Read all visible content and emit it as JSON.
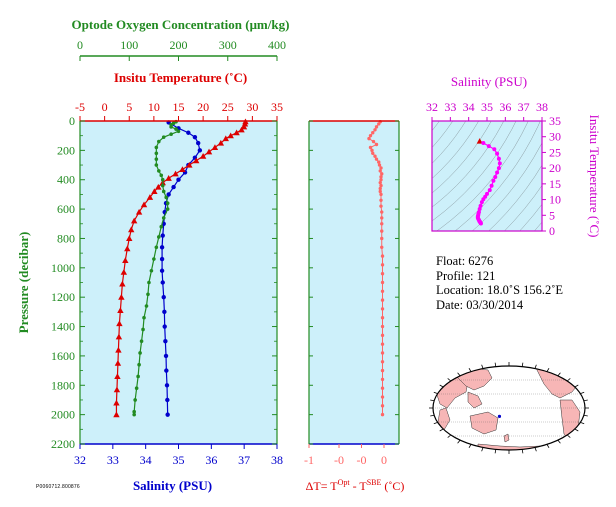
{
  "chart_data": [
    {
      "type": "scatter",
      "panel": "main-profile",
      "ylabel": "Pressure (decibar)",
      "ylim": [
        2200,
        0
      ],
      "yticks": [
        "0",
        "200",
        "400",
        "600",
        "800",
        "1000",
        "1200",
        "1400",
        "1600",
        "1800",
        "2000",
        "2200"
      ],
      "axes": {
        "oxygen": {
          "label": "Optode Oxygen Concentration (μm/kg)",
          "lim": [
            0,
            400
          ],
          "ticks": [
            "0",
            "100",
            "200",
            "300",
            "400"
          ],
          "color": "#228b22"
        },
        "temperature": {
          "label": "Insitu Temperature (˚C)",
          "lim": [
            -5,
            35
          ],
          "ticks": [
            "-5",
            "0",
            "5",
            "10",
            "15",
            "20",
            "25",
            "30",
            "35"
          ],
          "color": "#dd0000"
        },
        "salinity": {
          "label": "Salinity (PSU)",
          "lim": [
            32,
            38
          ],
          "ticks": [
            "32",
            "33",
            "34",
            "35",
            "36",
            "37",
            "38"
          ],
          "color": "#0000cc"
        }
      },
      "series": [
        {
          "axis": "temperature",
          "marker": "triangle",
          "color": "#dd0000",
          "points": [
            [
              28.6,
              5
            ],
            [
              28.5,
              20
            ],
            [
              28.3,
              40
            ],
            [
              27.8,
              60
            ],
            [
              26.8,
              80
            ],
            [
              25.6,
              100
            ],
            [
              24.6,
              120
            ],
            [
              23.6,
              150
            ],
            [
              22.4,
              180
            ],
            [
              21.2,
              210
            ],
            [
              20.0,
              240
            ],
            [
              18.6,
              270
            ],
            [
              17.2,
              300
            ],
            [
              15.8,
              330
            ],
            [
              14.4,
              360
            ],
            [
              13.0,
              390
            ],
            [
              11.8,
              420
            ],
            [
              10.9,
              450
            ],
            [
              10.1,
              480
            ],
            [
              9.2,
              520
            ],
            [
              8.0,
              570
            ],
            [
              7.0,
              620
            ],
            [
              6.0,
              680
            ],
            [
              5.4,
              740
            ],
            [
              5.0,
              800
            ],
            [
              4.6,
              870
            ],
            [
              4.2,
              950
            ],
            [
              3.9,
              1030
            ],
            [
              3.6,
              1110
            ],
            [
              3.4,
              1200
            ],
            [
              3.2,
              1290
            ],
            [
              3.0,
              1380
            ],
            [
              2.9,
              1470
            ],
            [
              2.8,
              1560
            ],
            [
              2.7,
              1650
            ],
            [
              2.6,
              1740
            ],
            [
              2.5,
              1830
            ],
            [
              2.4,
              1920
            ],
            [
              2.4,
              2000
            ]
          ]
        },
        {
          "axis": "salinity",
          "marker": "circle",
          "color": "#0000cc",
          "points": [
            [
              34.7,
              10
            ],
            [
              35.0,
              50
            ],
            [
              35.3,
              80
            ],
            [
              35.5,
              110
            ],
            [
              35.6,
              150
            ],
            [
              35.65,
              200
            ],
            [
              35.5,
              250
            ],
            [
              35.3,
              300
            ],
            [
              35.2,
              350
            ],
            [
              35.0,
              400
            ],
            [
              34.85,
              450
            ],
            [
              34.7,
              500
            ],
            [
              34.62,
              560
            ],
            [
              34.58,
              620
            ],
            [
              34.55,
              700
            ],
            [
              34.52,
              780
            ],
            [
              34.5,
              860
            ],
            [
              34.5,
              940
            ],
            [
              34.5,
              1020
            ],
            [
              34.52,
              1100
            ],
            [
              34.55,
              1200
            ],
            [
              34.57,
              1300
            ],
            [
              34.58,
              1400
            ],
            [
              34.6,
              1500
            ],
            [
              34.62,
              1600
            ],
            [
              34.63,
              1700
            ],
            [
              34.65,
              1800
            ],
            [
              34.66,
              1900
            ],
            [
              34.67,
              2000
            ]
          ]
        },
        {
          "axis": "oxygen",
          "marker": "circle-small",
          "color": "#228b22",
          "points": [
            [
              195,
              5
            ],
            [
              190,
              15
            ],
            [
              185,
              25
            ],
            [
              185,
              40
            ],
            [
              195,
              55
            ],
            [
              200,
              70
            ],
            [
              185,
              90
            ],
            [
              170,
              110
            ],
            [
              160,
              140
            ],
            [
              155,
              180
            ],
            [
              155,
              220
            ],
            [
              155,
              260
            ],
            [
              155,
              300
            ],
            [
              160,
              340
            ],
            [
              165,
              370
            ],
            [
              168,
              400
            ],
            [
              168,
              440
            ],
            [
              170,
              480
            ],
            [
              175,
              520
            ],
            [
              178,
              560
            ],
            [
              178,
              600
            ],
            [
              170,
              660
            ],
            [
              165,
              720
            ],
            [
              160,
              790
            ],
            [
              155,
              860
            ],
            [
              150,
              940
            ],
            [
              145,
              1020
            ],
            [
              140,
              1100
            ],
            [
              138,
              1180
            ],
            [
              135,
              1260
            ],
            [
              130,
              1340
            ],
            [
              128,
              1420
            ],
            [
              125,
              1500
            ],
            [
              122,
              1580
            ],
            [
              120,
              1660
            ],
            [
              118,
              1740
            ],
            [
              115,
              1820
            ],
            [
              112,
              1900
            ],
            [
              110,
              1980
            ],
            [
              110,
              2000
            ]
          ]
        }
      ]
    },
    {
      "type": "scatter",
      "panel": "delta-t",
      "xlabel": "ΔT= T",
      "xlabel_sup1": "Opt",
      "xlabel_mid": " - T",
      "xlabel_sup2": "SBE",
      "xlabel_end": " (˚C)",
      "xlim": [
        -1,
        0.2
      ],
      "xticks": [
        "-1",
        "-0",
        "-0",
        "0"
      ],
      "ylim": [
        2200,
        0
      ],
      "color": "#ff6666",
      "points": [
        [
          -0.05,
          5
        ],
        [
          -0.07,
          20
        ],
        [
          -0.1,
          40
        ],
        [
          -0.12,
          60
        ],
        [
          -0.15,
          80
        ],
        [
          -0.18,
          100
        ],
        [
          -0.2,
          120
        ],
        [
          -0.14,
          140
        ],
        [
          -0.1,
          160
        ],
        [
          -0.18,
          180
        ],
        [
          -0.16,
          200
        ],
        [
          -0.15,
          220
        ],
        [
          -0.12,
          240
        ],
        [
          -0.1,
          260
        ],
        [
          -0.07,
          280
        ],
        [
          -0.06,
          300
        ],
        [
          -0.04,
          320
        ],
        [
          -0.05,
          340
        ],
        [
          -0.03,
          360
        ],
        [
          -0.04,
          380
        ],
        [
          -0.04,
          400
        ],
        [
          -0.05,
          420
        ],
        [
          -0.04,
          440
        ],
        [
          -0.05,
          460
        ],
        [
          -0.05,
          480
        ],
        [
          -0.04,
          500
        ],
        [
          -0.04,
          540
        ],
        [
          -0.04,
          580
        ],
        [
          -0.03,
          620
        ],
        [
          -0.03,
          660
        ],
        [
          -0.03,
          700
        ],
        [
          -0.03,
          750
        ],
        [
          -0.03,
          800
        ],
        [
          -0.03,
          860
        ],
        [
          -0.02,
          920
        ],
        [
          -0.02,
          980
        ],
        [
          -0.02,
          1040
        ],
        [
          -0.02,
          1100
        ],
        [
          -0.02,
          1160
        ],
        [
          -0.02,
          1220
        ],
        [
          -0.02,
          1280
        ],
        [
          -0.02,
          1340
        ],
        [
          -0.02,
          1400
        ],
        [
          -0.02,
          1460
        ],
        [
          -0.02,
          1520
        ],
        [
          -0.02,
          1580
        ],
        [
          -0.02,
          1640
        ],
        [
          -0.02,
          1700
        ],
        [
          -0.02,
          1760
        ],
        [
          -0.02,
          1820
        ],
        [
          -0.02,
          1880
        ],
        [
          -0.02,
          1940
        ],
        [
          -0.02,
          2000
        ]
      ]
    },
    {
      "type": "scatter",
      "panel": "ts-diagram",
      "title": "Salinity (PSU)",
      "ylabel": "Insitu Temperature (˚C)",
      "xlim": [
        32,
        38
      ],
      "xticks": [
        "32",
        "33",
        "34",
        "35",
        "36",
        "37",
        "38"
      ],
      "ylim": [
        0,
        35
      ],
      "yticks": [
        "0",
        "5",
        "10",
        "15",
        "20",
        "25",
        "30",
        "35"
      ],
      "color": "#ff00ff",
      "points": [
        [
          34.6,
          28.6
        ],
        [
          34.8,
          28.0
        ],
        [
          35.1,
          27.0
        ],
        [
          35.4,
          26.0
        ],
        [
          35.55,
          24.6
        ],
        [
          35.65,
          23.0
        ],
        [
          35.7,
          21.5
        ],
        [
          35.65,
          20.0
        ],
        [
          35.55,
          18.6
        ],
        [
          35.45,
          17.2
        ],
        [
          35.35,
          16.0
        ],
        [
          35.25,
          14.4
        ],
        [
          35.15,
          13.0
        ],
        [
          35.0,
          11.8
        ],
        [
          34.9,
          10.9
        ],
        [
          34.8,
          10.1
        ],
        [
          34.72,
          9.2
        ],
        [
          34.65,
          8.0
        ],
        [
          34.6,
          7.0
        ],
        [
          34.56,
          6.0
        ],
        [
          34.53,
          5.4
        ],
        [
          34.52,
          5.0
        ],
        [
          34.5,
          4.6
        ],
        [
          34.5,
          4.2
        ],
        [
          34.52,
          3.9
        ],
        [
          34.55,
          3.6
        ],
        [
          34.57,
          3.4
        ],
        [
          34.58,
          3.2
        ],
        [
          34.6,
          3.0
        ],
        [
          34.62,
          2.9
        ],
        [
          34.63,
          2.8
        ],
        [
          34.65,
          2.6
        ],
        [
          34.66,
          2.5
        ],
        [
          34.67,
          2.4
        ]
      ]
    }
  ],
  "float_info": {
    "float": "Float:  6276",
    "profile": "Profile:  121",
    "location": "Location:  18.0˚S  156.2˚E",
    "date": "Date:  03/30/2014"
  },
  "map": {
    "marker_lat": -18.0,
    "marker_lon": 156.2,
    "land_color": "#f7b6b6",
    "ocean_color": "#ffffff"
  },
  "footer_code": "P0060712.800876",
  "colors": {
    "plot_bg": "#cdf0fa",
    "oxygen": "#228b22",
    "temperature": "#dd0000",
    "salinity": "#0000cc",
    "delta": "#ff6666",
    "ts": "#ff00ff",
    "ts_axis": "#cc00cc"
  }
}
